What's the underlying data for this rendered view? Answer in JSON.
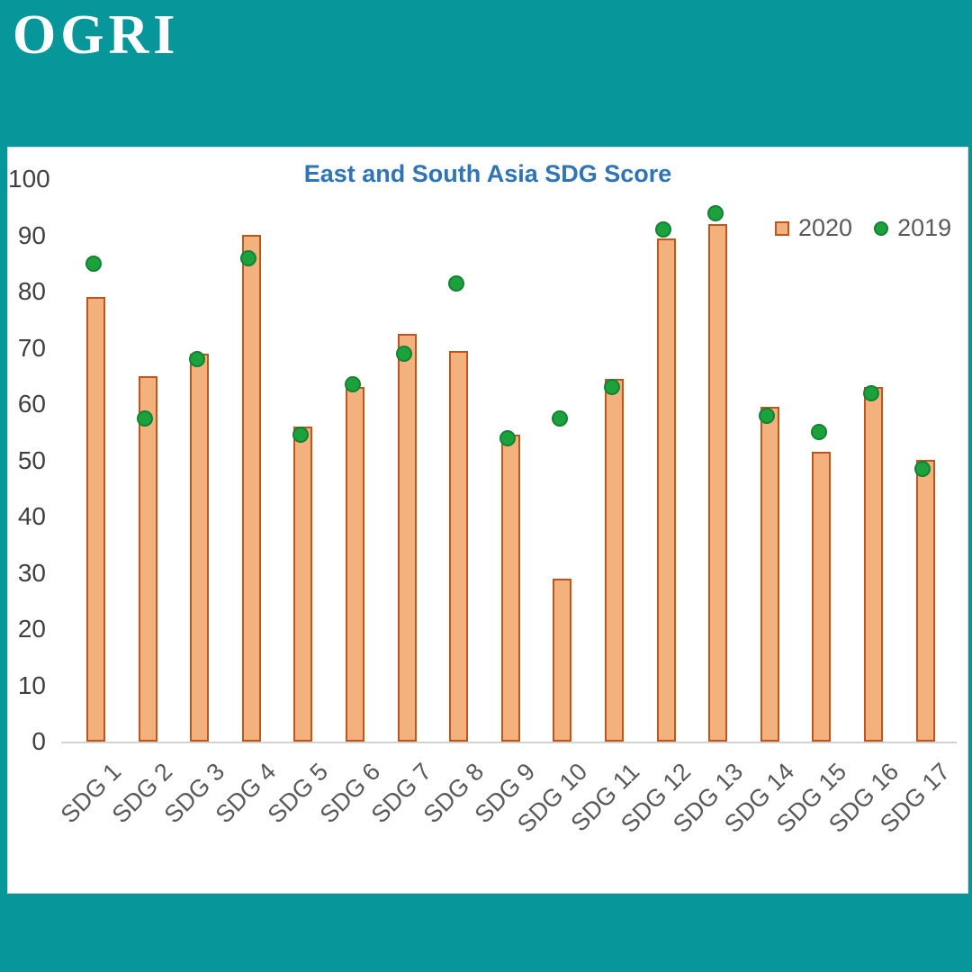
{
  "logo": "OGRI",
  "chart_data": {
    "type": "bar+scatter",
    "title": "East and South Asia SDG Score",
    "categories": [
      "SDG 1",
      "SDG 2",
      "SDG 3",
      "SDG 4",
      "SDG 5",
      "SDG 6",
      "SDG 7",
      "SDG 8",
      "SDG 9",
      "SDG 10",
      "SDG 11",
      "SDG 12",
      "SDG 13",
      "SDG 14",
      "SDG 15",
      "SDG 16",
      "SDG 17"
    ],
    "series": [
      {
        "name": "2020",
        "type": "bar",
        "color": "#F3B17E",
        "border_color": "#C0561B",
        "values": [
          79,
          65,
          69,
          90,
          56,
          63,
          72.5,
          69.5,
          54.5,
          29,
          64.5,
          89.5,
          92,
          59.5,
          51.5,
          63,
          50
        ]
      },
      {
        "name": "2019",
        "type": "scatter",
        "color": "#1CA23C",
        "border_color": "#128232",
        "values": [
          85,
          57.5,
          68,
          86,
          54.5,
          63.5,
          69,
          81.5,
          54,
          57.5,
          63,
          91,
          94,
          58,
          55,
          62,
          48.5
        ]
      }
    ],
    "ylim": [
      0,
      100
    ],
    "yticks": [
      0,
      10,
      20,
      30,
      40,
      50,
      60,
      70,
      80,
      90,
      100
    ],
    "grid": false,
    "legend_position": "top-right"
  },
  "colors": {
    "background_teal": "#07969A",
    "panel_white": "#FFFFFF",
    "panel_border": "#D9D9D9",
    "title_blue": "#2E74B6",
    "bar_fill": "#F3B17E",
    "bar_border": "#C0561B",
    "dot_fill": "#1CA23C",
    "dot_border": "#128232",
    "ytick_text": "#404040",
    "xtick_text": "#595959",
    "legend_text": "#595959",
    "baseline_gray": "#D2D2D2",
    "logo_white": "#FFFFFF"
  }
}
